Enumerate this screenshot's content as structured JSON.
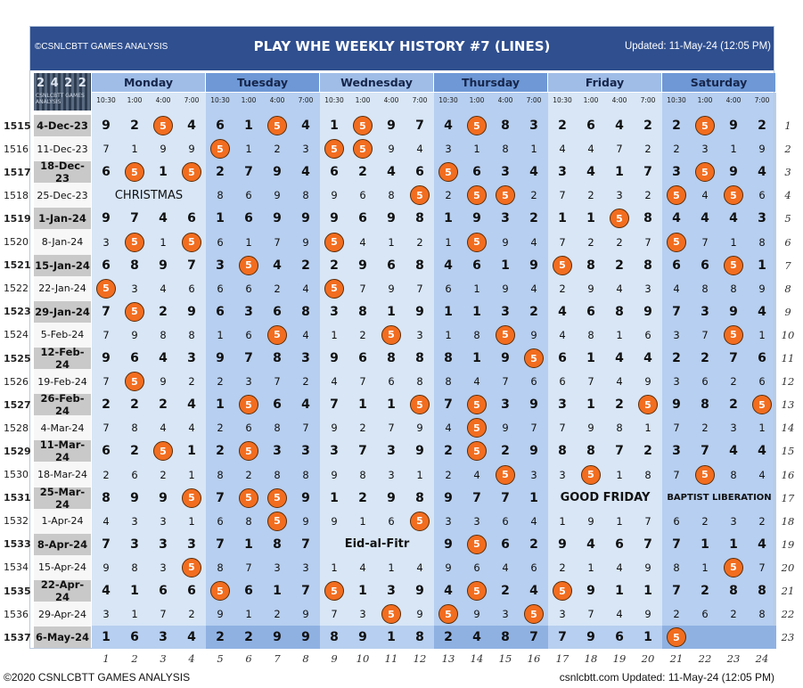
{
  "header": {
    "left_text": "©CSNLCBTT GAMES ANALYSIS",
    "title": "PLAY WHE WEEKLY HISTORY #7 (LINES)",
    "updated": "Updated: 11-May-24 (12:05 PM)"
  },
  "logo": {
    "text": "2 4 2 2",
    "subtext": "CSNLCBTT GAMES ANALYSIS"
  },
  "days": [
    "Monday",
    "Tuesday",
    "Wednesday",
    "Thursday",
    "Friday",
    "Saturday"
  ],
  "times": [
    "10:30",
    "1:00",
    "4:00",
    "7:00"
  ],
  "highlight_number": "5",
  "colors": {
    "banner": "#2f4f8f",
    "day_light": "#9fbde7",
    "day_dark": "#6e98d6",
    "circle": "#f26d1f",
    "date_bold_bg": "#c9c9c9"
  },
  "rows": [
    {
      "id": "1515",
      "date": "4-Dec-23",
      "bold": true,
      "vals": [
        "9",
        "2",
        "5",
        "4",
        "6",
        "1",
        "5",
        "4",
        "1",
        "5",
        "9",
        "7",
        "4",
        "5",
        "8",
        "3",
        "2",
        "6",
        "4",
        "2",
        "2",
        "5",
        "9",
        "2"
      ]
    },
    {
      "id": "1516",
      "date": "11-Dec-23",
      "bold": false,
      "vals": [
        "7",
        "1",
        "9",
        "9",
        "5",
        "1",
        "2",
        "3",
        "5",
        "5",
        "9",
        "4",
        "3",
        "1",
        "8",
        "1",
        "4",
        "4",
        "7",
        "2",
        "2",
        "3",
        "1",
        "9"
      ]
    },
    {
      "id": "1517",
      "date": "18-Dec-23",
      "bold": true,
      "vals": [
        "6",
        "5",
        "1",
        "5",
        "2",
        "7",
        "9",
        "4",
        "6",
        "2",
        "4",
        "6",
        "5",
        "6",
        "3",
        "4",
        "3",
        "4",
        "1",
        "7",
        "3",
        "5",
        "9",
        "4"
      ]
    },
    {
      "id": "1518",
      "date": "25-Dec-23",
      "bold": false,
      "vals": [
        "",
        "",
        "",
        "",
        "8",
        "6",
        "9",
        "8",
        "9",
        "6",
        "8",
        "5",
        "2",
        "5",
        "5",
        "2",
        "7",
        "2",
        "3",
        "2",
        "5",
        "4",
        "5",
        "6"
      ]
    },
    {
      "id": "1519",
      "date": "1-Jan-24",
      "bold": true,
      "vals": [
        "9",
        "7",
        "4",
        "6",
        "1",
        "6",
        "9",
        "9",
        "9",
        "6",
        "9",
        "8",
        "1",
        "9",
        "3",
        "2",
        "1",
        "1",
        "5",
        "8",
        "4",
        "4",
        "4",
        "3"
      ]
    },
    {
      "id": "1520",
      "date": "8-Jan-24",
      "bold": false,
      "vals": [
        "3",
        "5",
        "1",
        "5",
        "6",
        "1",
        "7",
        "9",
        "5",
        "4",
        "1",
        "2",
        "1",
        "5",
        "9",
        "4",
        "7",
        "2",
        "2",
        "7",
        "5",
        "7",
        "1",
        "8"
      ]
    },
    {
      "id": "1521",
      "date": "15-Jan-24",
      "bold": true,
      "vals": [
        "6",
        "8",
        "9",
        "7",
        "3",
        "5",
        "4",
        "2",
        "2",
        "9",
        "6",
        "8",
        "4",
        "6",
        "1",
        "9",
        "5",
        "8",
        "2",
        "8",
        "6",
        "6",
        "5",
        "1"
      ]
    },
    {
      "id": "1522",
      "date": "22-Jan-24",
      "bold": false,
      "vals": [
        "5",
        "3",
        "4",
        "6",
        "6",
        "6",
        "2",
        "4",
        "5",
        "7",
        "9",
        "7",
        "6",
        "1",
        "9",
        "4",
        "2",
        "9",
        "4",
        "3",
        "4",
        "8",
        "8",
        "9"
      ]
    },
    {
      "id": "1523",
      "date": "29-Jan-24",
      "bold": true,
      "vals": [
        "7",
        "5",
        "2",
        "9",
        "6",
        "3",
        "6",
        "8",
        "3",
        "8",
        "1",
        "9",
        "1",
        "1",
        "3",
        "2",
        "4",
        "6",
        "8",
        "9",
        "7",
        "3",
        "9",
        "4"
      ]
    },
    {
      "id": "1524",
      "date": "5-Feb-24",
      "bold": false,
      "vals": [
        "7",
        "9",
        "8",
        "8",
        "1",
        "6",
        "5",
        "4",
        "1",
        "2",
        "5",
        "3",
        "1",
        "8",
        "5",
        "9",
        "4",
        "8",
        "1",
        "6",
        "3",
        "7",
        "5",
        "1"
      ]
    },
    {
      "id": "1525",
      "date": "12-Feb-24",
      "bold": true,
      "vals": [
        "9",
        "6",
        "4",
        "3",
        "9",
        "7",
        "8",
        "3",
        "9",
        "6",
        "8",
        "8",
        "8",
        "1",
        "9",
        "5",
        "6",
        "1",
        "4",
        "4",
        "2",
        "2",
        "7",
        "6"
      ]
    },
    {
      "id": "1526",
      "date": "19-Feb-24",
      "bold": false,
      "vals": [
        "7",
        "5",
        "9",
        "2",
        "2",
        "3",
        "7",
        "2",
        "4",
        "7",
        "6",
        "8",
        "8",
        "4",
        "7",
        "6",
        "6",
        "7",
        "4",
        "9",
        "3",
        "6",
        "2",
        "6"
      ]
    },
    {
      "id": "1527",
      "date": "26-Feb-24",
      "bold": true,
      "vals": [
        "2",
        "2",
        "2",
        "4",
        "1",
        "5",
        "6",
        "4",
        "7",
        "1",
        "1",
        "5",
        "7",
        "5",
        "3",
        "9",
        "3",
        "1",
        "2",
        "5",
        "9",
        "8",
        "2",
        "5"
      ]
    },
    {
      "id": "1528",
      "date": "4-Mar-24",
      "bold": false,
      "vals": [
        "7",
        "8",
        "4",
        "4",
        "2",
        "6",
        "8",
        "7",
        "9",
        "2",
        "7",
        "9",
        "4",
        "5",
        "9",
        "7",
        "7",
        "9",
        "8",
        "1",
        "7",
        "2",
        "3",
        "1"
      ]
    },
    {
      "id": "1529",
      "date": "11-Mar-24",
      "bold": true,
      "vals": [
        "6",
        "2",
        "5",
        "1",
        "2",
        "5",
        "3",
        "3",
        "3",
        "7",
        "3",
        "9",
        "2",
        "5",
        "2",
        "9",
        "8",
        "8",
        "7",
        "2",
        "3",
        "7",
        "4",
        "4"
      ]
    },
    {
      "id": "1530",
      "date": "18-Mar-24",
      "bold": false,
      "vals": [
        "2",
        "6",
        "2",
        "1",
        "8",
        "2",
        "8",
        "8",
        "9",
        "8",
        "3",
        "1",
        "2",
        "4",
        "5",
        "3",
        "3",
        "5",
        "1",
        "8",
        "7",
        "5",
        "8",
        "4"
      ]
    },
    {
      "id": "1531",
      "date": "25-Mar-24",
      "bold": true,
      "vals": [
        "8",
        "9",
        "9",
        "5",
        "7",
        "5",
        "5",
        "9",
        "1",
        "2",
        "9",
        "8",
        "9",
        "7",
        "7",
        "1",
        "",
        "",
        "",
        "",
        "",
        "",
        "",
        ""
      ]
    },
    {
      "id": "1532",
      "date": "1-Apr-24",
      "bold": false,
      "vals": [
        "4",
        "3",
        "3",
        "1",
        "6",
        "8",
        "5",
        "9",
        "9",
        "1",
        "6",
        "5",
        "3",
        "3",
        "6",
        "4",
        "1",
        "9",
        "1",
        "7",
        "6",
        "2",
        "3",
        "2"
      ]
    },
    {
      "id": "1533",
      "date": "8-Apr-24",
      "bold": true,
      "vals": [
        "7",
        "3",
        "3",
        "3",
        "7",
        "1",
        "8",
        "7",
        "",
        "",
        "",
        "",
        "9",
        "5",
        "6",
        "2",
        "9",
        "4",
        "6",
        "7",
        "7",
        "1",
        "1",
        "4"
      ]
    },
    {
      "id": "1534",
      "date": "15-Apr-24",
      "bold": false,
      "vals": [
        "9",
        "8",
        "3",
        "5",
        "8",
        "7",
        "3",
        "3",
        "1",
        "4",
        "1",
        "4",
        "9",
        "6",
        "4",
        "6",
        "2",
        "1",
        "4",
        "9",
        "8",
        "1",
        "5",
        "7"
      ]
    },
    {
      "id": "1535",
      "date": "22-Apr-24",
      "bold": true,
      "vals": [
        "4",
        "1",
        "6",
        "6",
        "5",
        "6",
        "1",
        "7",
        "5",
        "1",
        "3",
        "9",
        "4",
        "5",
        "2",
        "4",
        "5",
        "9",
        "1",
        "1",
        "7",
        "2",
        "8",
        "8"
      ]
    },
    {
      "id": "1536",
      "date": "29-Apr-24",
      "bold": false,
      "vals": [
        "3",
        "1",
        "7",
        "2",
        "9",
        "1",
        "2",
        "9",
        "7",
        "3",
        "5",
        "9",
        "5",
        "9",
        "3",
        "5",
        "3",
        "7",
        "4",
        "9",
        "2",
        "6",
        "2",
        "8"
      ]
    },
    {
      "id": "1537",
      "date": "6-May-24",
      "bold": true,
      "vals": [
        "1",
        "6",
        "3",
        "4",
        "2",
        "2",
        "9",
        "9",
        "8",
        "9",
        "1",
        "8",
        "2",
        "4",
        "8",
        "7",
        "7",
        "9",
        "6",
        "1",
        "5",
        "",
        "",
        ""
      ]
    }
  ],
  "notes": [
    {
      "row": 3,
      "startCol": 0,
      "span": 4,
      "text": "CHRISTMAS",
      "style": "normal"
    },
    {
      "row": 16,
      "startCol": 16,
      "span": 4,
      "text": "GOOD FRIDAY",
      "style": "bold"
    },
    {
      "row": 16,
      "startCol": 20,
      "span": 4,
      "text": "BAPTIST LIBERATION",
      "style": "boldsmall"
    },
    {
      "row": 18,
      "startCol": 8,
      "span": 4,
      "text": "Eid-al-Fitr",
      "style": "bold"
    }
  ],
  "right_numbers": [
    "1",
    "2",
    "3",
    "4",
    "5",
    "6",
    "7",
    "8",
    "9",
    "10",
    "11",
    "12",
    "13",
    "14",
    "15",
    "16",
    "17",
    "18",
    "19",
    "20",
    "21",
    "22",
    "23"
  ],
  "col_numbers": [
    "1",
    "2",
    "3",
    "4",
    "5",
    "6",
    "7",
    "8",
    "9",
    "10",
    "11",
    "12",
    "13",
    "14",
    "15",
    "16",
    "17",
    "18",
    "19",
    "20",
    "21",
    "22",
    "23",
    "24"
  ],
  "footer": {
    "left": "©2020 CSNLCBTT GAMES ANALYSIS",
    "right": "csnlcbtt.com Updated: 11-May-24 (12:05 PM)"
  }
}
